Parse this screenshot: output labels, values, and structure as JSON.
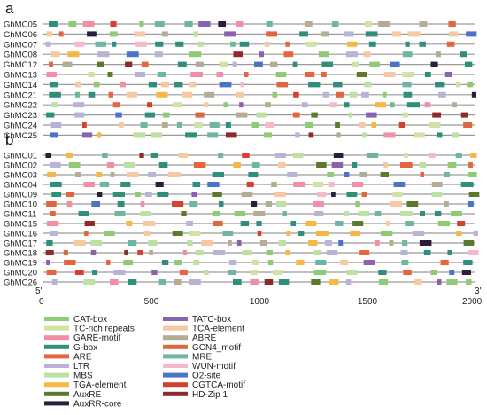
{
  "panels": [
    {
      "label": "a",
      "genes": [
        "GhMC05",
        "GhMC06",
        "GhMC07",
        "GhMC08",
        "GhMC12",
        "GhMC13",
        "GhMC14",
        "GhMC21",
        "GhMC22",
        "GhMC23",
        "GhMC24",
        "GhMC25"
      ]
    },
    {
      "label": "b",
      "genes": [
        "GhMC01",
        "GhMC02",
        "GhMC03",
        "GhMC04",
        "GhMC09",
        "GhMC10",
        "GhMC11",
        "GhMC15",
        "GhMC16",
        "GhMC17",
        "GhMC18",
        "GhMC19",
        "GhMC20",
        "GhMC26"
      ]
    }
  ],
  "axis": {
    "min": 0,
    "max": 2000,
    "ticks": [
      500,
      1000,
      1500
    ],
    "left_end_label": "5'",
    "left_zero_label": "0",
    "right_end_label": "3'",
    "right_max_label": "2000"
  },
  "legend": [
    {
      "name": "CAT-box",
      "color": "#8fca74"
    },
    {
      "name": "TC-rich repeats",
      "color": "#cfe3a3"
    },
    {
      "name": "GARE-motif",
      "color": "#f28ea6"
    },
    {
      "name": "G-box",
      "color": "#2e8f7a"
    },
    {
      "name": "ARE",
      "color": "#e8643c"
    },
    {
      "name": "LTR",
      "color": "#b9b3d8"
    },
    {
      "name": "MBS",
      "color": "#bde0a3"
    },
    {
      "name": "TGA-element",
      "color": "#f7b843"
    },
    {
      "name": "AuxRE",
      "color": "#5c7a2c"
    },
    {
      "name": "AuxRR-core",
      "color": "#2a1f3a"
    },
    {
      "name": "TATC-box",
      "color": "#8a62b0"
    },
    {
      "name": "TCA-element",
      "color": "#f6c9a3"
    },
    {
      "name": "ABRE",
      "color": "#b5ac96"
    },
    {
      "name": "GCN4_motif",
      "color": "#e0663e"
    },
    {
      "name": "MRE",
      "color": "#6fb6a0"
    },
    {
      "name": "WUN-motif",
      "color": "#f7b8c8"
    },
    {
      "name": "O2-site",
      "color": "#4a74c8"
    },
    {
      "name": "CGTCA-motif",
      "color": "#d6412f"
    },
    {
      "name": "HD-Zip 1",
      "color": "#8e2a2a"
    }
  ]
}
